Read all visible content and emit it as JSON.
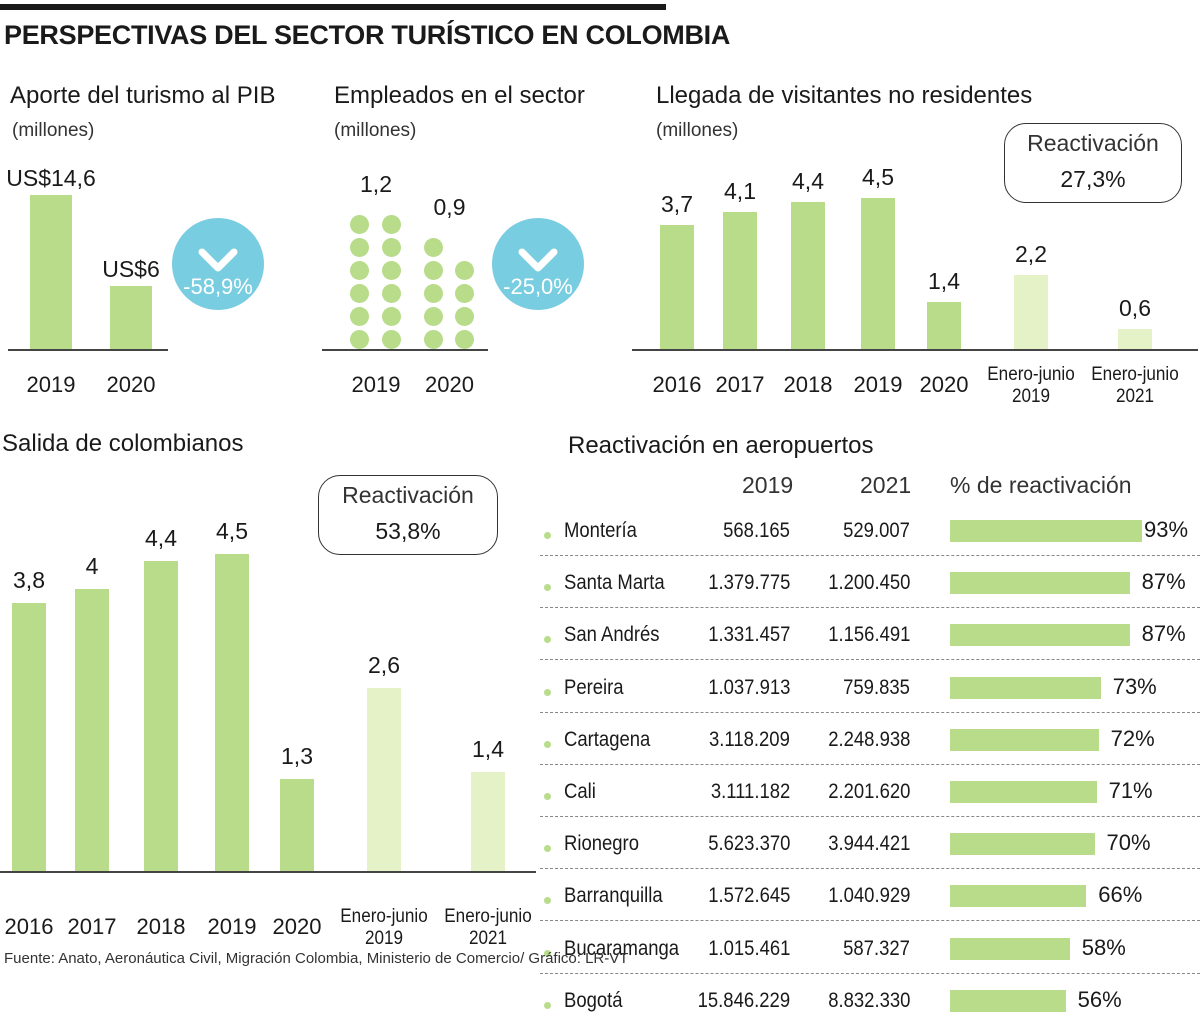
{
  "title": "PERSPECTIVAS DEL SECTOR TURÍSTICO EN COLOMBIA",
  "colors": {
    "bar": "#b8dc8a",
    "bar_light": "#e5f1c6",
    "badge": "#79cde1"
  },
  "pib": {
    "title": "Aporte del turismo al PIB",
    "unit": "(millones)",
    "change": "-58,9%",
    "icon": "chevron-down-icon"
  },
  "empleados": {
    "title": "Empleados en el sector",
    "unit": "(millones)",
    "change": "-25,0%",
    "icon": "chevron-down-icon"
  },
  "llegada": {
    "title": "Llegada de visitantes no residentes",
    "unit": "(millones)",
    "reactivacion_label": "Reactivación",
    "reactivacion_value": "27,3%"
  },
  "salida": {
    "title": "Salida de colombianos",
    "reactivacion_label": "Reactivación",
    "reactivacion_value": "53,8%"
  },
  "aeropuertos": {
    "title": "Reactivación en aeropuertos",
    "headers": [
      "2019",
      "2021",
      "% de reactivación"
    ],
    "rows": [
      {
        "city": "Montería",
        "y2019": "568.165",
        "y2021": "529.007",
        "pct": "93%",
        "value": 93
      },
      {
        "city": "Santa Marta",
        "y2019": "1.379.775",
        "y2021": "1.200.450",
        "pct": "87%",
        "value": 87
      },
      {
        "city": "San Andrés",
        "y2019": "1.331.457",
        "y2021": "1.156.491",
        "pct": "87%",
        "value": 87
      },
      {
        "city": "Pereira",
        "y2019": "1.037.913",
        "y2021": "759.835",
        "pct": "73%",
        "value": 73
      },
      {
        "city": "Cartagena",
        "y2019": "3.118.209",
        "y2021": "2.248.938",
        "pct": "72%",
        "value": 72
      },
      {
        "city": "Cali",
        "y2019": "3.111.182",
        "y2021": "2.201.620",
        "pct": "71%",
        "value": 71
      },
      {
        "city": "Rionegro",
        "y2019": "5.623.370",
        "y2021": "3.944.421",
        "pct": "70%",
        "value": 70
      },
      {
        "city": "Barranquilla",
        "y2019": "1.572.645",
        "y2021": "1.040.929",
        "pct": "66%",
        "value": 66
      },
      {
        "city": "Bucaramanga",
        "y2019": "1.015.461",
        "y2021": "587.327",
        "pct": "58%",
        "value": 58
      },
      {
        "city": "Bogotá",
        "y2019": "15.846.229",
        "y2021": "8.832.330",
        "pct": "56%",
        "value": 56
      }
    ]
  },
  "source": "Fuente: Anato, Aeronáutica Civil, Migración Colombia, Ministerio de Comercio/ Gráfico: LR-VT",
  "chart_data": [
    {
      "type": "bar",
      "title": "Aporte del turismo al PIB",
      "ylabel": "(millones)",
      "categories": [
        "2019",
        "2020"
      ],
      "values": [
        14.6,
        6
      ],
      "labels": [
        "US$14,6",
        "US$6"
      ]
    },
    {
      "type": "bar",
      "title": "Empleados en el sector",
      "ylabel": "(millones)",
      "categories": [
        "2019",
        "2020"
      ],
      "values": [
        1.2,
        0.9
      ],
      "labels": [
        "1,2",
        "0,9"
      ]
    },
    {
      "type": "bar",
      "title": "Llegada de visitantes no residentes",
      "ylabel": "(millones)",
      "categories": [
        "2016",
        "2017",
        "2018",
        "2019",
        "2020",
        "Enero-junio 2019",
        "Enero-junio 2021"
      ],
      "values": [
        3.7,
        4.1,
        4.4,
        4.5,
        1.4,
        2.2,
        0.6
      ],
      "labels": [
        "3,7",
        "4,1",
        "4,4",
        "4,5",
        "1,4",
        "2,2",
        "0,6"
      ]
    },
    {
      "type": "bar",
      "title": "Salida de colombianos",
      "categories": [
        "2016",
        "2017",
        "2018",
        "2019",
        "2020",
        "Enero-junio 2019",
        "Enero-junio 2021"
      ],
      "values": [
        3.8,
        4,
        4.4,
        4.5,
        1.3,
        2.6,
        1.4
      ],
      "labels": [
        "3,8",
        "4",
        "4,4",
        "4,5",
        "1,3",
        "2,6",
        "1,4"
      ]
    },
    {
      "type": "bar",
      "title": "Reactivación en aeropuertos",
      "categories": [
        "Montería",
        "Santa Marta",
        "San Andrés",
        "Pereira",
        "Cartagena",
        "Cali",
        "Rionegro",
        "Barranquilla",
        "Bucaramanga",
        "Bogotá"
      ],
      "values": [
        93,
        87,
        87,
        73,
        72,
        71,
        70,
        66,
        58,
        56
      ]
    }
  ]
}
